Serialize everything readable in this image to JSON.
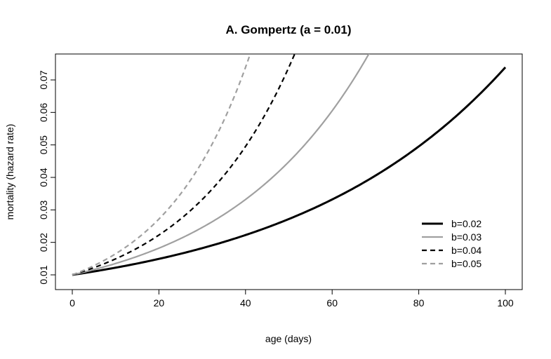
{
  "chart_data": {
    "type": "line",
    "title": "A. Gompertz (a = 0.01)",
    "xlabel": "age (days)",
    "ylabel": "mortality (hazard rate)",
    "xlim": [
      0,
      100
    ],
    "ylim": [
      0.01,
      0.074
    ],
    "x_ticks": [
      0,
      20,
      40,
      60,
      80,
      100
    ],
    "y_ticks": [
      0.01,
      0.02,
      0.03,
      0.04,
      0.05,
      0.06,
      0.07
    ],
    "x_tick_labels": [
      "0",
      "20",
      "40",
      "60",
      "80",
      "100"
    ],
    "y_tick_labels": [
      "0.01",
      "0.02",
      "0.03",
      "0.04",
      "0.05",
      "0.06",
      "0.07"
    ],
    "grid": false,
    "legend_position": "bottom-right",
    "model": "a * exp(b * x)",
    "a": 0.01,
    "series": [
      {
        "name": "b=0.02",
        "b": 0.02,
        "color": "#000000",
        "style": "solid",
        "x": [
          0,
          10,
          20,
          30,
          40,
          50,
          60,
          70,
          80,
          90,
          100
        ],
        "values": [
          0.01,
          0.0122,
          0.0149,
          0.0182,
          0.0223,
          0.0272,
          0.0332,
          0.0406,
          0.0495,
          0.0605,
          0.0739
        ]
      },
      {
        "name": "b=0.03",
        "b": 0.03,
        "color": "#a0a0a0",
        "style": "solid",
        "x": [
          0,
          10,
          20,
          30,
          40,
          50,
          60,
          68.7
        ],
        "values": [
          0.01,
          0.0135,
          0.0182,
          0.0246,
          0.0332,
          0.0448,
          0.0605,
          0.0787
        ]
      },
      {
        "name": "b=0.04",
        "b": 0.04,
        "color": "#000000",
        "style": "dashed",
        "x": [
          0,
          10,
          20,
          30,
          40,
          45,
          51.5
        ],
        "values": [
          0.01,
          0.0149,
          0.0223,
          0.0332,
          0.0495,
          0.0605,
          0.0787
        ]
      },
      {
        "name": "b=0.05",
        "b": 0.05,
        "color": "#a0a0a0",
        "style": "dashed",
        "x": [
          0,
          10,
          20,
          30,
          36,
          41.2
        ],
        "values": [
          0.01,
          0.0165,
          0.0272,
          0.0448,
          0.0605,
          0.0787
        ]
      }
    ]
  }
}
